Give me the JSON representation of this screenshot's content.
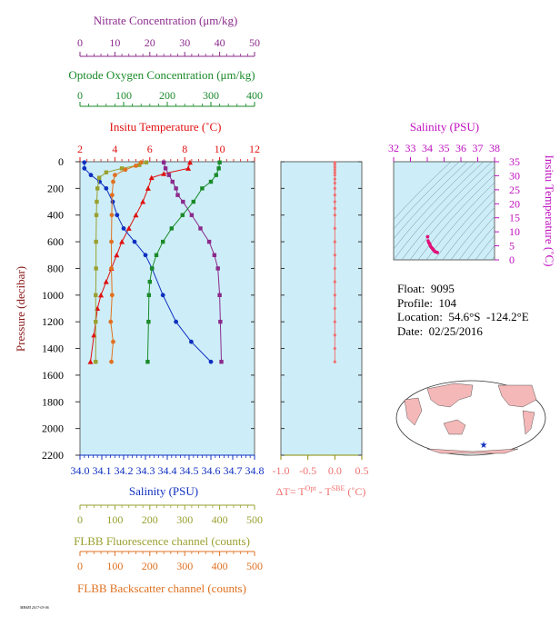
{
  "float_info": {
    "float_line": "Float:  9095",
    "profile_line": "Profile:  104",
    "location_line": "Location:  54.6°S  -124.2°E",
    "date_line": "Date:  02/25/2016"
  },
  "stamp": "MBARI 2017-03-06",
  "colors": {
    "nitrate": "#8B2A8B",
    "oxygen": "#1A8A2A",
    "temperature": "#E01010",
    "salinity": "#1030C0",
    "fluorescence": "#9AA030",
    "backscatter": "#E07020",
    "delta_t": "#F07070",
    "ts_axis": "#C010C0",
    "panel_bg": "#CDEEF8"
  },
  "chart_data": [
    {
      "type": "line",
      "panel": "profile",
      "ylabel": "Pressure (decibar)",
      "ylim": [
        2200,
        0
      ],
      "yticks": [
        0,
        200,
        400,
        600,
        800,
        1000,
        1200,
        1400,
        1600,
        1800,
        2000,
        2200
      ],
      "axes": {
        "nitrate": {
          "label": "Nitrate Concentration (μm/kg)",
          "range": [
            0,
            50
          ],
          "ticks": [
            0,
            10,
            20,
            30,
            40,
            50
          ]
        },
        "oxygen": {
          "label": "Optode Oxygen Concentration (μm/kg)",
          "range": [
            0,
            400
          ],
          "ticks": [
            0,
            100,
            200,
            300,
            400
          ]
        },
        "temperature": {
          "label": "Insitu Temperature (˚C)",
          "range": [
            2,
            12
          ],
          "ticks": [
            2,
            4,
            6,
            8,
            10,
            12
          ]
        },
        "salinity": {
          "label": "Salinity (PSU)",
          "range": [
            34.0,
            34.8
          ],
          "ticks": [
            "34.0",
            "34.1",
            "34.2",
            "34.3",
            "34.4",
            "34.5",
            "34.6",
            "34.7",
            "34.8"
          ]
        },
        "fluorescence": {
          "label": "FLBB Fluorescence channel (counts)",
          "range": [
            0,
            500
          ],
          "ticks": [
            0,
            100,
            200,
            300,
            400,
            500
          ]
        },
        "backscatter": {
          "label": "FLBB Backscatter channel (counts)",
          "range": [
            0,
            500
          ],
          "ticks": [
            0,
            100,
            200,
            300,
            400,
            500
          ]
        }
      },
      "series": [
        {
          "key": "temperature",
          "marker": "triangle",
          "x": [
            8.3,
            8.2,
            6.8,
            6.1,
            5.9,
            5.6,
            5.2,
            4.8,
            4.4,
            4.1,
            3.8,
            3.5,
            3.2,
            3.0,
            2.8,
            2.6
          ],
          "y": [
            5,
            50,
            90,
            120,
            200,
            300,
            400,
            500,
            600,
            700,
            800,
            900,
            1000,
            1100,
            1300,
            1500
          ]
        },
        {
          "key": "salinity",
          "marker": "circle",
          "x": [
            34.02,
            34.02,
            34.05,
            34.09,
            34.12,
            34.15,
            34.17,
            34.2,
            34.25,
            34.3,
            34.33,
            34.38,
            34.44,
            34.51,
            34.6
          ],
          "y": [
            5,
            50,
            100,
            150,
            200,
            300,
            400,
            500,
            600,
            700,
            800,
            1000,
            1200,
            1350,
            1500
          ]
        },
        {
          "key": "nitrate",
          "marker": "square",
          "x": [
            24,
            24.5,
            25.5,
            26.5,
            27.5,
            28,
            29.5,
            32,
            34.5,
            37,
            38.5,
            39.5,
            40,
            40.2,
            40.5
          ],
          "y": [
            5,
            50,
            100,
            150,
            200,
            250,
            300,
            400,
            500,
            600,
            700,
            800,
            1000,
            1200,
            1500
          ]
        },
        {
          "key": "oxygen",
          "marker": "square",
          "x": [
            320,
            318,
            312,
            300,
            280,
            260,
            235,
            210,
            190,
            175,
            165,
            160,
            158,
            157,
            155
          ],
          "y": [
            5,
            50,
            100,
            150,
            200,
            300,
            400,
            500,
            600,
            700,
            800,
            900,
            1000,
            1200,
            1500
          ]
        },
        {
          "key": "fluorescence",
          "marker": "square",
          "x": [
            190,
            170,
            120,
            75,
            55,
            50,
            48,
            47,
            46,
            46,
            45,
            45,
            45
          ],
          "y": [
            5,
            25,
            50,
            80,
            120,
            200,
            300,
            400,
            600,
            800,
            1000,
            1200,
            1500
          ]
        },
        {
          "key": "backscatter",
          "marker": "circle",
          "x": [
            175,
            160,
            130,
            100,
            95,
            92,
            91,
            90,
            90,
            92,
            88,
            95,
            90
          ],
          "y": [
            5,
            30,
            60,
            100,
            150,
            250,
            400,
            600,
            800,
            1000,
            1200,
            1350,
            1500
          ]
        }
      ]
    },
    {
      "type": "scatter",
      "panel": "delta_t",
      "xlabel": "ΔT= T",
      "xlabel_sup1": "Opt",
      "xlabel_mid": " - T",
      "xlabel_sup2": "SBE",
      "xlabel_unit": " (˚C)",
      "xlim": [
        -1.0,
        0.5
      ],
      "ylim": [
        2200,
        0
      ],
      "xticks": [
        "-1.0",
        "-0.5",
        "0.0",
        "0.5"
      ],
      "x": [
        0.0,
        0.0,
        0.0,
        0.0,
        0.0,
        0.0,
        0.0,
        0.0,
        0.0,
        0.0,
        0.0,
        0.0,
        0.0,
        0.0,
        0.0,
        0.0,
        0.0,
        0.0,
        0.0,
        0.0,
        0.0,
        0.0,
        0.0,
        0.0
      ],
      "y": [
        5,
        20,
        40,
        60,
        80,
        100,
        130,
        160,
        200,
        250,
        300,
        350,
        400,
        500,
        600,
        700,
        800,
        900,
        1000,
        1100,
        1200,
        1300,
        1400,
        1500
      ]
    },
    {
      "type": "scatter",
      "panel": "ts_diagram",
      "title": "Salinity (PSU)",
      "ylabel": "Insitu Temperature (˚C)",
      "xlim": [
        32,
        38
      ],
      "ylim": [
        0,
        35
      ],
      "xticks": [
        "32",
        "33",
        "34",
        "35",
        "36",
        "37",
        "38"
      ],
      "yticks": [
        "0",
        "5",
        "10",
        "15",
        "20",
        "25",
        "30",
        "35"
      ],
      "x": [
        34.02,
        34.02,
        34.05,
        34.09,
        34.12,
        34.15,
        34.17,
        34.2,
        34.25,
        34.3,
        34.33,
        34.38,
        34.44,
        34.51,
        34.6
      ],
      "y": [
        8.3,
        8.2,
        6.8,
        6.1,
        5.9,
        5.6,
        5.2,
        4.8,
        4.4,
        4.1,
        3.8,
        3.5,
        3.0,
        2.8,
        2.6
      ]
    }
  ]
}
